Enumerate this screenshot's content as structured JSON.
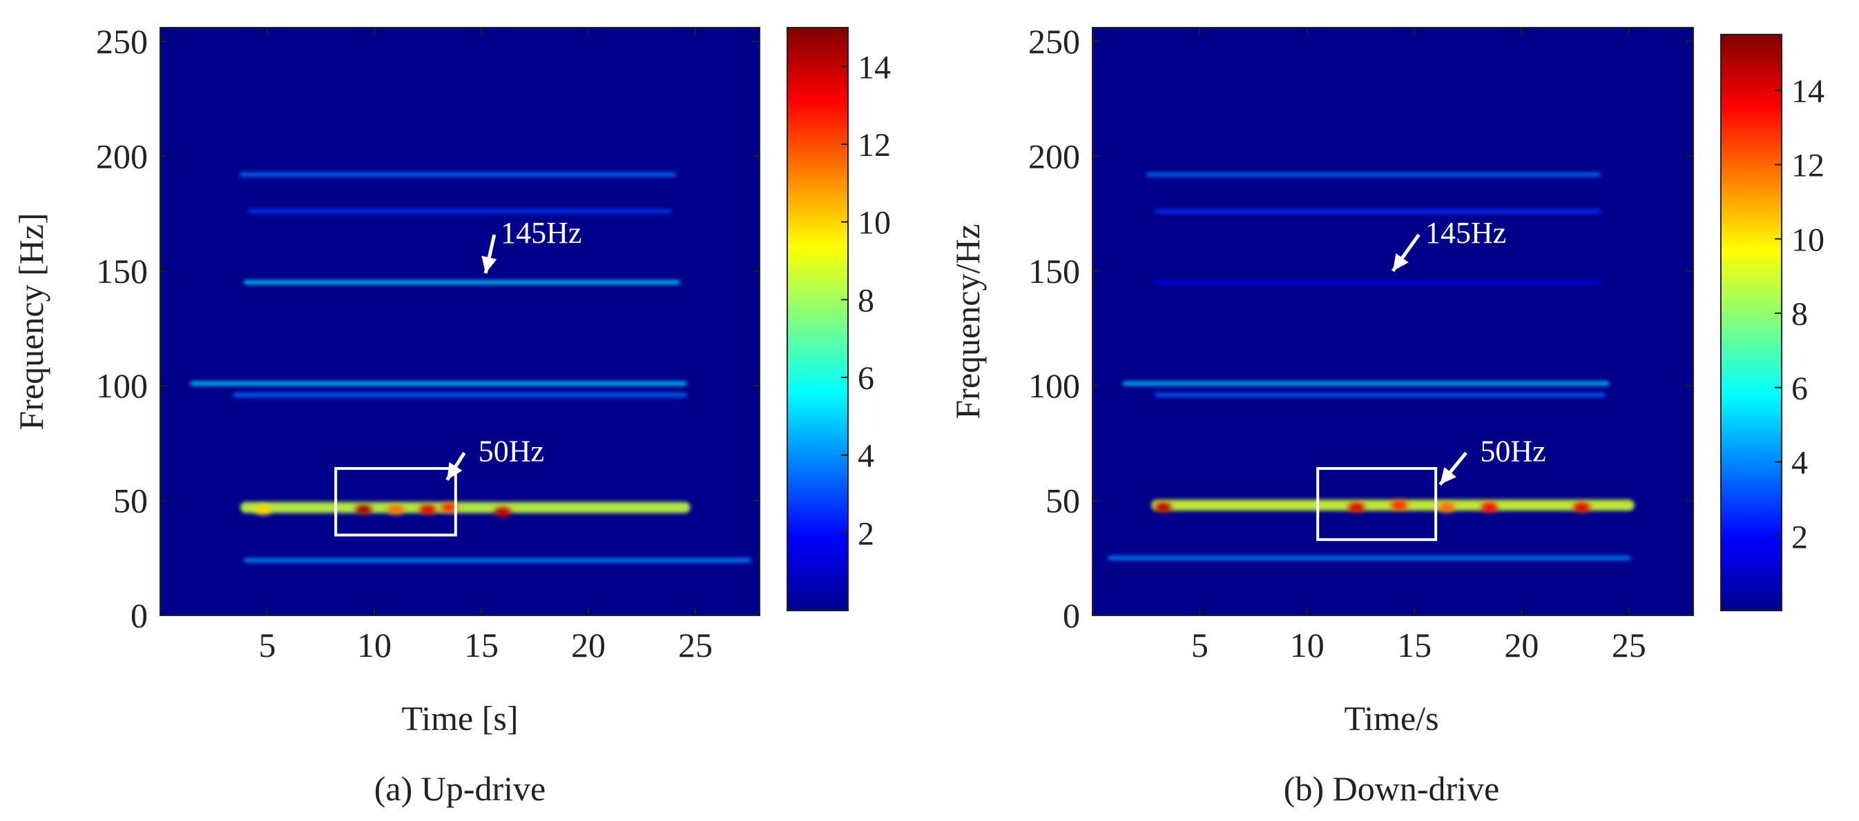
{
  "chart_data": [
    {
      "type": "heatmap",
      "caption": "(a) Up-drive",
      "xlabel": "Time [s]",
      "ylabel": "Frequency [Hz]",
      "xlim": [
        0,
        28
      ],
      "ylim": [
        0,
        256
      ],
      "xticks": [
        5,
        10,
        15,
        20,
        25
      ],
      "yticks": [
        0,
        50,
        100,
        150,
        200,
        250
      ],
      "colorbar": {
        "ticks": [
          2,
          4,
          6,
          8,
          10,
          12,
          14
        ],
        "range": [
          0,
          15
        ]
      },
      "annotations": [
        {
          "label": "145Hz",
          "text_x": 17.8,
          "text_y": 167,
          "arrow_to_x": 15.2,
          "arrow_to_y": 149
        },
        {
          "label": "50Hz",
          "text_x": 16.4,
          "text_y": 72,
          "arrow_to_x": 13.4,
          "arrow_to_y": 59
        }
      ],
      "highlight_box": {
        "x0": 8.2,
        "x1": 13.8,
        "y0": 35,
        "y1": 64
      },
      "ridges": [
        {
          "freq_hz": 192,
          "t_start": 3.8,
          "t_end": 24.0,
          "intensity": 3.6
        },
        {
          "freq_hz": 176,
          "t_start": 4.2,
          "t_end": 23.8,
          "intensity": 2.8
        },
        {
          "freq_hz": 145,
          "t_start": 4.0,
          "t_end": 24.2,
          "intensity": 5.0
        },
        {
          "freq_hz": 101,
          "t_start": 1.5,
          "t_end": 24.5,
          "intensity": 5.0
        },
        {
          "freq_hz": 96,
          "t_start": 3.5,
          "t_end": 24.5,
          "intensity": 3.6
        },
        {
          "freq_hz": 47,
          "t_start": 4.0,
          "t_end": 24.5,
          "intensity": 8.5
        },
        {
          "freq_hz": 24,
          "t_start": 4.0,
          "t_end": 27.5,
          "intensity": 4.0
        }
      ],
      "hotspots": [
        {
          "t": 9.5,
          "freq_hz": 46,
          "intensity": 14.5
        },
        {
          "t": 12.5,
          "freq_hz": 46,
          "intensity": 13.5
        },
        {
          "t": 13.5,
          "freq_hz": 47,
          "intensity": 12.5
        },
        {
          "t": 16.0,
          "freq_hz": 45,
          "intensity": 14.0
        },
        {
          "t": 11.0,
          "freq_hz": 46,
          "intensity": 11.5
        },
        {
          "t": 4.8,
          "freq_hz": 46,
          "intensity": 10.0
        }
      ]
    },
    {
      "type": "heatmap",
      "caption": "(b) Down-drive",
      "xlabel": "Time/s",
      "ylabel": "Frequency/Hz",
      "xlim": [
        0,
        28
      ],
      "ylim": [
        0,
        256
      ],
      "xticks": [
        5,
        10,
        15,
        20,
        25
      ],
      "yticks": [
        0,
        50,
        100,
        150,
        200,
        250
      ],
      "colorbar": {
        "ticks": [
          2,
          4,
          6,
          8,
          10,
          12,
          14
        ],
        "range": [
          0,
          15.5
        ]
      },
      "annotations": [
        {
          "label": "145Hz",
          "text_x": 17.4,
          "text_y": 167,
          "arrow_to_x": 14.0,
          "arrow_to_y": 150
        },
        {
          "label": "50Hz",
          "text_x": 19.6,
          "text_y": 72,
          "arrow_to_x": 16.2,
          "arrow_to_y": 57
        }
      ],
      "highlight_box": {
        "x0": 10.5,
        "x1": 16.0,
        "y0": 33,
        "y1": 64
      },
      "ridges": [
        {
          "freq_hz": 192,
          "t_start": 2.6,
          "t_end": 23.6,
          "intensity": 3.6
        },
        {
          "freq_hz": 176,
          "t_start": 3.0,
          "t_end": 23.6,
          "intensity": 2.6
        },
        {
          "freq_hz": 145,
          "t_start": 3.0,
          "t_end": 23.6,
          "intensity": 1.6
        },
        {
          "freq_hz": 101,
          "t_start": 1.5,
          "t_end": 24.0,
          "intensity": 5.0
        },
        {
          "freq_hz": 96,
          "t_start": 3.0,
          "t_end": 23.8,
          "intensity": 3.4
        },
        {
          "freq_hz": 48,
          "t_start": 3.0,
          "t_end": 25.0,
          "intensity": 9.0
        },
        {
          "freq_hz": 25,
          "t_start": 0.8,
          "t_end": 25.0,
          "intensity": 4.0
        }
      ],
      "hotspots": [
        {
          "t": 3.3,
          "freq_hz": 47,
          "intensity": 14.5
        },
        {
          "t": 12.3,
          "freq_hz": 47,
          "intensity": 14.0
        },
        {
          "t": 14.3,
          "freq_hz": 48,
          "intensity": 13.0
        },
        {
          "t": 18.5,
          "freq_hz": 47,
          "intensity": 13.5
        },
        {
          "t": 22.8,
          "freq_hz": 47,
          "intensity": 14.0
        },
        {
          "t": 16.5,
          "freq_hz": 47,
          "intensity": 12.0
        }
      ]
    }
  ]
}
